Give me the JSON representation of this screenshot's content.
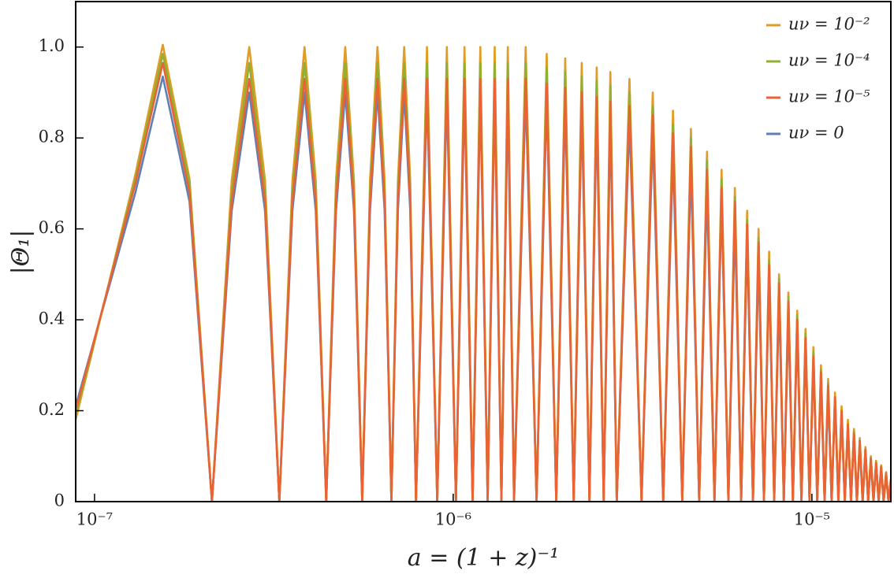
{
  "chart_data": {
    "type": "line",
    "xscale": "log",
    "x_label": "a = (1 + z)⁻¹",
    "y_label": "|Θ₁|",
    "legend": "upper right",
    "xlim": [
      8.86e-08,
      1.66e-05
    ],
    "ylim": [
      0,
      1.1
    ],
    "xticks": [
      {
        "value": 1e-07,
        "label": "10⁻⁷"
      },
      {
        "value": 1e-06,
        "label": "10⁻⁶"
      },
      {
        "value": 1e-05,
        "label": "10⁻⁵"
      }
    ],
    "yticks": [
      0,
      0.2,
      0.4,
      0.6,
      0.8,
      {
        "value": 1,
        "label": "1.0"
      }
    ],
    "x": [
      8.86e-08,
      1.3e-07,
      1.55e-07,
      1.84e-07,
      2.125e-07,
      2.4125e-07,
      2.7e-07,
      2.9875e-07,
      3.275e-07,
      3.5625e-07,
      3.85e-07,
      4.1375e-07,
      4.425e-07,
      4.7125e-07,
      5e-07,
      5.2875e-07,
      5.575e-07,
      5.8625e-07,
      6.15e-07,
      6.4375e-07,
      6.725e-07,
      7.0125e-07,
      7.3e-07,
      7.5875e-07,
      7.875e-07,
      8.45e-07,
      9.025e-07,
      9.6e-07,
      1.0175e-06,
      1.075e-06,
      1.1325e-06,
      1.19e-06,
      1.2475e-06,
      1.305e-06,
      1.3625e-06,
      1.42e-06,
      1.4775e-06,
      1.5925e-06,
      1.7075e-06,
      1.8225e-06,
      1.9375e-06,
      2.0525e-06,
      2.1675e-06,
      2.2825e-06,
      2.3975e-06,
      2.5125e-06,
      2.6275e-06,
      2.7425e-06,
      2.8575e-06,
      3.1e-06,
      3.35e-06,
      3.6e-06,
      3.85e-06,
      4.1e-06,
      4.35e-06,
      4.6e-06,
      4.85e-06,
      5.1e-06,
      5.35e-06,
      5.6e-06,
      5.85e-06,
      6.1e-06,
      6.35e-06,
      6.6e-06,
      6.85e-06,
      7.1e-06,
      7.35e-06,
      7.6e-06,
      7.85e-06,
      8.1e-06,
      8.35e-06,
      8.6e-06,
      8.85e-06,
      9.1e-06,
      9.35e-06,
      9.6e-06,
      9.85e-06,
      1.01e-05,
      1.035e-05,
      1.06e-05,
      1.085e-05,
      1.11e-05,
      1.135e-05,
      1.16e-05,
      1.185e-05,
      1.21e-05,
      1.235e-05,
      1.26e-05,
      1.285e-05,
      1.31e-05,
      1.335e-05,
      1.36e-05,
      1.385e-05,
      1.41e-05,
      1.435e-05,
      1.46e-05,
      1.485e-05,
      1.51e-05,
      1.535e-05,
      1.56e-05,
      1.585e-05,
      1.61e-05,
      1.635e-05,
      1.66e-05
    ],
    "series": [
      {
        "name": "uν = 10⁻²",
        "color": "#e19c24",
        "values": [
          0.18,
          0.72,
          1.005,
          0.71,
          0,
          0.707,
          1,
          0.707,
          0,
          0.707,
          1,
          0.707,
          0,
          0.707,
          1,
          0.707,
          0,
          0.707,
          1,
          0.707,
          0,
          0.707,
          1,
          0.707,
          0,
          1,
          0,
          1,
          0,
          1,
          0,
          1,
          0,
          1,
          0,
          1,
          0,
          1,
          0,
          0.985,
          0,
          0.975,
          0,
          0.965,
          0,
          0.955,
          0,
          0.945,
          0,
          0.93,
          0,
          0.9,
          0,
          0.86,
          0,
          0.82,
          0,
          0.77,
          0,
          0.73,
          0,
          0.69,
          0,
          0.64,
          0,
          0.6,
          0,
          0.55,
          0,
          0.5,
          0,
          0.46,
          0,
          0.42,
          0,
          0.38,
          0,
          0.34,
          0,
          0.3,
          0,
          0.27,
          0,
          0.24,
          0,
          0.21,
          0,
          0.18,
          0,
          0.16,
          0,
          0.14,
          0,
          0.12,
          0,
          0.1,
          0,
          0.09,
          0,
          0.08,
          0,
          0.065,
          0,
          0.05
        ]
      },
      {
        "name": "uν = 10⁻⁴",
        "color": "#8fb032",
        "values": [
          0.19,
          0.71,
          0.985,
          0.7,
          0,
          0.68,
          0.965,
          0.68,
          0,
          0.68,
          0.965,
          0.68,
          0,
          0.68,
          0.965,
          0.68,
          0,
          0.68,
          0.965,
          0.68,
          0,
          0.68,
          0.965,
          0.68,
          0,
          0.965,
          0,
          0.965,
          0,
          0.965,
          0,
          0.965,
          0,
          0.965,
          0,
          0.965,
          0,
          0.965,
          0,
          0.955,
          0,
          0.945,
          0,
          0.935,
          0,
          0.925,
          0,
          0.915,
          0,
          0.9,
          0,
          0.87,
          0,
          0.83,
          0,
          0.8,
          0,
          0.75,
          0,
          0.71,
          0,
          0.67,
          0,
          0.62,
          0,
          0.58,
          0,
          0.53,
          0,
          0.49,
          0,
          0.45,
          0,
          0.41,
          0,
          0.37,
          0,
          0.33,
          0,
          0.29,
          0,
          0.26,
          0,
          0.23,
          0,
          0.2,
          0,
          0.17,
          0,
          0.155,
          0,
          0.135,
          0,
          0.115,
          0,
          0.097,
          0,
          0.087,
          0,
          0.078,
          0,
          0.063,
          0,
          0.048
        ]
      },
      {
        "name": "uν = 10⁻⁵",
        "color": "#eb6235",
        "values": [
          0.2,
          0.7,
          0.965,
          0.68,
          0,
          0.66,
          0.93,
          0.66,
          0,
          0.66,
          0.93,
          0.66,
          0,
          0.66,
          0.93,
          0.66,
          0,
          0.66,
          0.93,
          0.66,
          0,
          0.66,
          0.93,
          0.66,
          0,
          0.93,
          0,
          0.93,
          0,
          0.93,
          0,
          0.93,
          0,
          0.93,
          0,
          0.93,
          0,
          0.93,
          0,
          0.92,
          0,
          0.91,
          0,
          0.9,
          0,
          0.89,
          0,
          0.88,
          0,
          0.87,
          0,
          0.85,
          0,
          0.81,
          0,
          0.78,
          0,
          0.73,
          0,
          0.69,
          0,
          0.66,
          0,
          0.61,
          0,
          0.57,
          0,
          0.52,
          0,
          0.48,
          0,
          0.44,
          0,
          0.4,
          0,
          0.36,
          0,
          0.32,
          0,
          0.285,
          0,
          0.255,
          0,
          0.23,
          0,
          0.2,
          0,
          0.17,
          0,
          0.15,
          0,
          0.133,
          0,
          0.114,
          0,
          0.095,
          0,
          0.085,
          0,
          0.076,
          0,
          0.062,
          0,
          0.047
        ]
      },
      {
        "name": "uν = 0",
        "color": "#5d81b4",
        "values": [
          0.21,
          0.68,
          0.935,
          0.66,
          0,
          0.64,
          0.9,
          0.64,
          0,
          0.64,
          0.9,
          0.64,
          0,
          0.64,
          0.9,
          0.64,
          0,
          0.64,
          0.9,
          0.64,
          0,
          0.64,
          0.9,
          0.64,
          0,
          0.9,
          0,
          0.9,
          0,
          0.9,
          0,
          0.9,
          0,
          0.9,
          0,
          0.9,
          0,
          0.9,
          0,
          0.89,
          0,
          0.88,
          0,
          0.87,
          0,
          0.86,
          0,
          0.85,
          0,
          0.84,
          0,
          0.81,
          0,
          0.77,
          0,
          0.74,
          0,
          0.69,
          0,
          0.66,
          0,
          0.62,
          0,
          0.58,
          0,
          0.54,
          0,
          0.5,
          0,
          0.45,
          0,
          0.41,
          0,
          0.38,
          0,
          0.34,
          0,
          0.31,
          0,
          0.27,
          0,
          0.24,
          0,
          0.22,
          0,
          0.19,
          0,
          0.16,
          0,
          0.14,
          0,
          0.126,
          0,
          0.108,
          0,
          0.09,
          0,
          0.081,
          0,
          0.072,
          0,
          0.059,
          0,
          0.045
        ]
      }
    ]
  }
}
